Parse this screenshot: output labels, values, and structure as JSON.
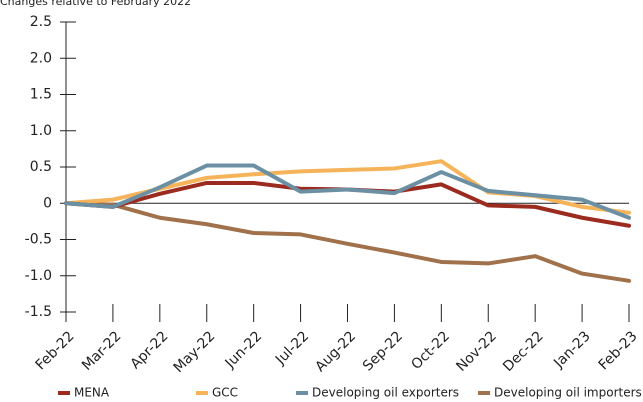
{
  "chart_data": {
    "type": "line",
    "subtitle": "Changes relative to February 2022",
    "categories": [
      "Feb-22",
      "Mar-22",
      "Apr-22",
      "May-22",
      "Jun-22",
      "Jul-22",
      "Aug-22",
      "Sep-22",
      "Oct-22",
      "Nov-22",
      "Dec-22",
      "Jan-23",
      "Feb-23"
    ],
    "series": [
      {
        "name": "MENA",
        "color": "#9b2a1f",
        "values": [
          0,
          -0.05,
          0.13,
          0.28,
          0.28,
          0.2,
          0.19,
          0.16,
          0.26,
          -0.03,
          -0.05,
          -0.2,
          -0.31
        ]
      },
      {
        "name": "GCC",
        "color": "#f5b45a",
        "values": [
          0,
          0.05,
          0.2,
          0.35,
          0.4,
          0.44,
          0.46,
          0.48,
          0.58,
          0.15,
          0.1,
          -0.05,
          -0.13
        ]
      },
      {
        "name": "Developing oil exporters",
        "color": "#6b8fa3",
        "values": [
          0,
          -0.05,
          0.22,
          0.52,
          0.52,
          0.16,
          0.19,
          0.14,
          0.43,
          0.17,
          0.11,
          0.05,
          -0.2
        ]
      },
      {
        "name": "Developing oil importers",
        "color": "#a0714a",
        "values": [
          0,
          -0.02,
          -0.2,
          -0.29,
          -0.41,
          -0.43,
          -0.56,
          -0.68,
          -0.81,
          -0.83,
          -0.73,
          -0.97,
          -1.07
        ]
      }
    ],
    "ylim": [
      -1.5,
      2.5
    ],
    "yticks": [
      2.5,
      {
        "value": 2,
        "label": "2.0"
      },
      1.5,
      {
        "value": 1,
        "label": "1.0"
      },
      0.5,
      0,
      -0.5,
      {
        "value": -1,
        "label": "-1.0"
      },
      -1.5
    ]
  }
}
